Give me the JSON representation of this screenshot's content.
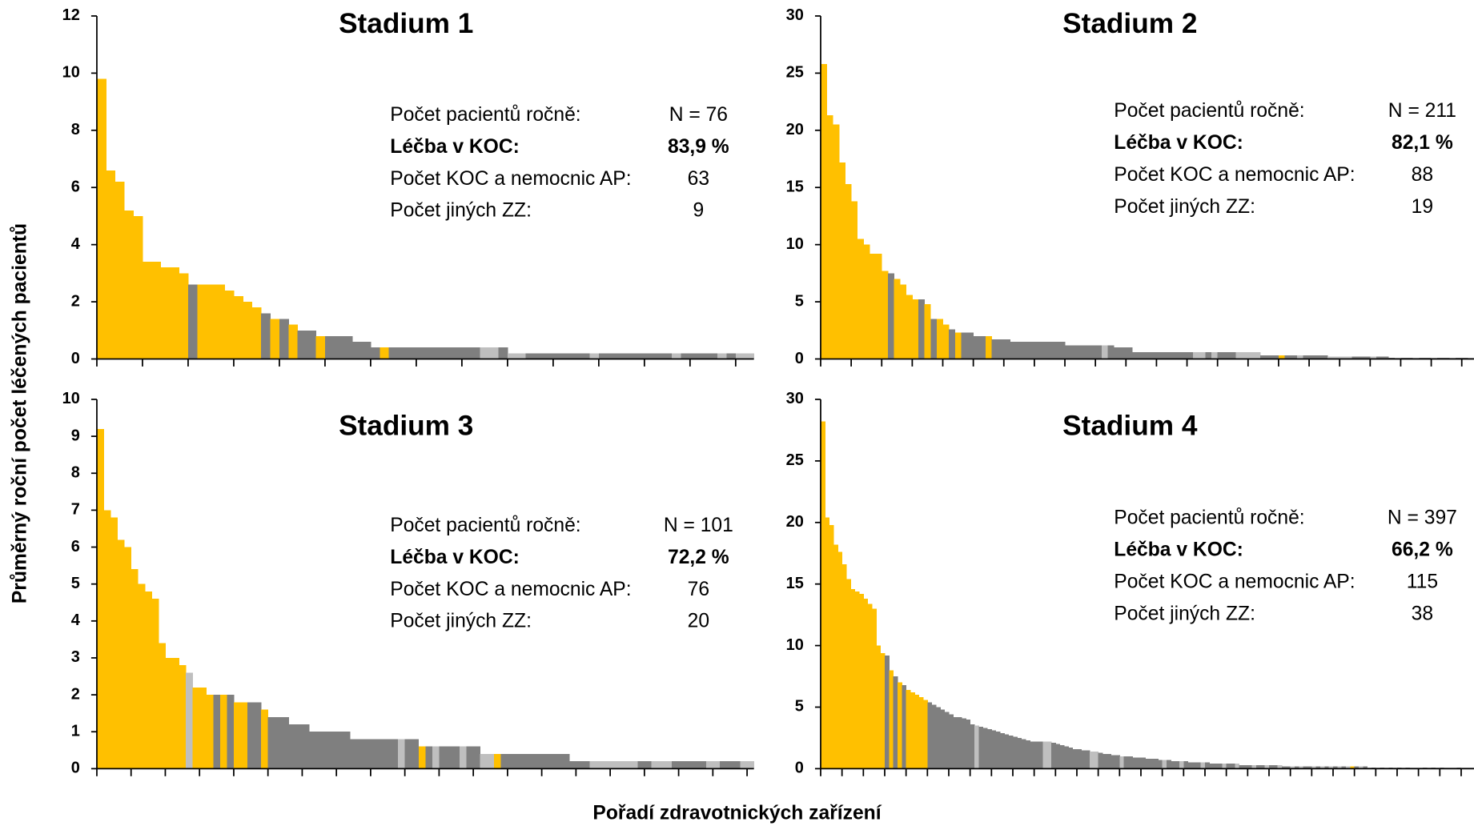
{
  "axis_titles": {
    "y": "Průměrný roční počet léčených pacientů",
    "x": "Pořadí zdravotnických zařízení"
  },
  "chart_data": [
    {
      "type": "bar",
      "title": "Stadium 1",
      "ylim": [
        0,
        12
      ],
      "yticks": [
        0,
        2,
        4,
        6,
        8,
        10,
        12
      ],
      "annotations": [
        {
          "label": "Počet pacientů ročně:",
          "value_label": "N = 76"
        },
        {
          "label": "Léčba v KOC:",
          "value_label": "83,9 %",
          "bold": true
        },
        {
          "label": "Počet KOC a nemocnic AP:",
          "value_label": "63"
        },
        {
          "label": "Počet jiných ZZ:",
          "value_label": "9"
        }
      ],
      "values": [
        9.8,
        6.6,
        6.2,
        5.2,
        5,
        3.4,
        3.4,
        3.2,
        3.2,
        3,
        2.6,
        2.6,
        2.6,
        2.6,
        2.4,
        2.2,
        2,
        1.8,
        1.6,
        1.4,
        1.4,
        1.2,
        1,
        1,
        0.8,
        0.8,
        0.8,
        0.8,
        0.6,
        0.6,
        0.4,
        0.4,
        0.4,
        0.4,
        0.4,
        0.4,
        0.4,
        0.4,
        0.4,
        0.4,
        0.4,
        0.4,
        0.4,
        0.4,
        0.4,
        0.2,
        0.2,
        0.2,
        0.2,
        0.2,
        0.2,
        0.2,
        0.2,
        0.2,
        0.2,
        0.2,
        0.2,
        0.2,
        0.2,
        0.2,
        0.2,
        0.2,
        0.2,
        0.2,
        0.2,
        0.2,
        0.2,
        0.2,
        0.2,
        0.2,
        0.2,
        0.2
      ],
      "colors": [
        "#ffc000",
        "#ffc000",
        "#ffc000",
        "#ffc000",
        "#ffc000",
        "#ffc000",
        "#ffc000",
        "#ffc000",
        "#ffc000",
        "#ffc000",
        "#7f7f7f",
        "#ffc000",
        "#ffc000",
        "#ffc000",
        "#ffc000",
        "#ffc000",
        "#ffc000",
        "#ffc000",
        "#7f7f7f",
        "#ffc000",
        "#7f7f7f",
        "#ffc000",
        "#7f7f7f",
        "#7f7f7f",
        "#ffc000",
        "#7f7f7f",
        "#7f7f7f",
        "#7f7f7f",
        "#7f7f7f",
        "#7f7f7f",
        "#7f7f7f",
        "#ffc000",
        "#7f7f7f",
        "#7f7f7f",
        "#7f7f7f",
        "#7f7f7f",
        "#7f7f7f",
        "#7f7f7f",
        "#7f7f7f",
        "#7f7f7f",
        "#7f7f7f",
        "#7f7f7f",
        "#bfbfbf",
        "#bfbfbf",
        "#7f7f7f",
        "#bfbfbf",
        "#bfbfbf",
        "#7f7f7f",
        "#7f7f7f",
        "#7f7f7f",
        "#7f7f7f",
        "#7f7f7f",
        "#7f7f7f",
        "#7f7f7f",
        "#bfbfbf",
        "#7f7f7f",
        "#7f7f7f",
        "#7f7f7f",
        "#7f7f7f",
        "#7f7f7f",
        "#7f7f7f",
        "#7f7f7f",
        "#7f7f7f",
        "#bfbfbf",
        "#7f7f7f",
        "#7f7f7f",
        "#7f7f7f",
        "#7f7f7f",
        "#bfbfbf",
        "#7f7f7f",
        "#bfbfbf",
        "#bfbfbf"
      ]
    },
    {
      "type": "bar",
      "title": "Stadium 2",
      "ylim": [
        0,
        30
      ],
      "yticks": [
        0,
        5,
        10,
        15,
        20,
        25,
        30
      ],
      "annotations": [
        {
          "label": "Počet pacientů ročně:",
          "value_label": "N = 211"
        },
        {
          "label": "Léčba v KOC:",
          "value_label": "82,1 %",
          "bold": true
        },
        {
          "label": "Počet KOC a nemocnic AP:",
          "value_label": "88"
        },
        {
          "label": "Počet jiných ZZ:",
          "value_label": "19"
        }
      ],
      "values": [
        25.8,
        21.3,
        20.5,
        17.2,
        15.3,
        13.8,
        10.5,
        10,
        9.2,
        9.2,
        7.7,
        7.5,
        7,
        6.5,
        5.6,
        5.2,
        5.2,
        4.8,
        3.5,
        3.5,
        3,
        2.6,
        2.3,
        2.3,
        2.3,
        2,
        2,
        2,
        1.7,
        1.7,
        1.7,
        1.5,
        1.5,
        1.5,
        1.5,
        1.5,
        1.5,
        1.5,
        1.5,
        1.5,
        1.2,
        1.2,
        1.2,
        1.2,
        1.2,
        1.2,
        1.2,
        1.2,
        1,
        1,
        1,
        0.6,
        0.6,
        0.6,
        0.6,
        0.6,
        0.6,
        0.6,
        0.6,
        0.6,
        0.6,
        0.6,
        0.6,
        0.6,
        0.6,
        0.6,
        0.6,
        0.6,
        0.6,
        0.6,
        0.6,
        0.6,
        0.3,
        0.3,
        0.3,
        0.3,
        0.3,
        0.3,
        0.3,
        0.3,
        0.3,
        0.3,
        0.3,
        0.2,
        0.2,
        0.2,
        0.2,
        0.2,
        0.2,
        0.2,
        0.2,
        0.2,
        0.2,
        0.1,
        0.1,
        0.1,
        0.1,
        0.1,
        0.1,
        0.1,
        0.1,
        0.1,
        0.1,
        0.1,
        0.1,
        0.1,
        0.1
      ],
      "colors": [
        "#ffc000",
        "#ffc000",
        "#ffc000",
        "#ffc000",
        "#ffc000",
        "#ffc000",
        "#ffc000",
        "#ffc000",
        "#ffc000",
        "#ffc000",
        "#ffc000",
        "#7f7f7f",
        "#ffc000",
        "#ffc000",
        "#ffc000",
        "#ffc000",
        "#7f7f7f",
        "#ffc000",
        "#7f7f7f",
        "#ffc000",
        "#ffc000",
        "#7f7f7f",
        "#ffc000",
        "#7f7f7f",
        "#7f7f7f",
        "#7f7f7f",
        "#7f7f7f",
        "#ffc000",
        "#7f7f7f",
        "#7f7f7f",
        "#7f7f7f",
        "#7f7f7f",
        "#7f7f7f",
        "#7f7f7f",
        "#7f7f7f",
        "#7f7f7f",
        "#7f7f7f",
        "#7f7f7f",
        "#7f7f7f",
        "#7f7f7f",
        "#7f7f7f",
        "#7f7f7f",
        "#7f7f7f",
        "#7f7f7f",
        "#7f7f7f",
        "#7f7f7f",
        "#bfbfbf",
        "#7f7f7f",
        "#7f7f7f",
        "#7f7f7f",
        "#7f7f7f",
        "#7f7f7f",
        "#7f7f7f",
        "#7f7f7f",
        "#7f7f7f",
        "#7f7f7f",
        "#7f7f7f",
        "#7f7f7f",
        "#7f7f7f",
        "#7f7f7f",
        "#7f7f7f",
        "#bfbfbf",
        "#bfbfbf",
        "#7f7f7f",
        "#bfbfbf",
        "#7f7f7f",
        "#7f7f7f",
        "#7f7f7f",
        "#bfbfbf",
        "#bfbfbf",
        "#bfbfbf",
        "#bfbfbf",
        "#7f7f7f",
        "#7f7f7f",
        "#7f7f7f",
        "#ffc000",
        "#7f7f7f",
        "#7f7f7f",
        "#bfbfbf",
        "#7f7f7f",
        "#7f7f7f",
        "#7f7f7f",
        "#7f7f7f",
        "#bfbfbf",
        "#bfbfbf",
        "#bfbfbf",
        "#bfbfbf",
        "#7f7f7f",
        "#7f7f7f",
        "#7f7f7f",
        "#bfbfbf",
        "#7f7f7f",
        "#7f7f7f",
        "#7f7f7f",
        "#bfbfbf",
        "#7f7f7f",
        "#7f7f7f",
        "#bfbfbf",
        "#7f7f7f",
        "#7f7f7f",
        "#bfbfbf",
        "#7f7f7f",
        "#7f7f7f",
        "#bfbfbf",
        "#7f7f7f",
        "#7f7f7f",
        "#bfbfbf"
      ]
    },
    {
      "type": "bar",
      "title": "Stadium 3",
      "ylim": [
        0,
        10
      ],
      "yticks": [
        0,
        1,
        2,
        3,
        4,
        5,
        6,
        7,
        8,
        9,
        10
      ],
      "annotations": [
        {
          "label": "Počet pacientů ročně:",
          "value_label": "N = 101"
        },
        {
          "label": "Léčba v KOC:",
          "value_label": "72,2 %",
          "bold": true
        },
        {
          "label": "Počet KOC a nemocnic AP:",
          "value_label": "76"
        },
        {
          "label": "Počet jiných ZZ:",
          "value_label": "20"
        }
      ],
      "values": [
        9.2,
        7,
        6.8,
        6.2,
        6,
        5.4,
        5,
        4.8,
        4.6,
        3.4,
        3,
        3,
        2.8,
        2.6,
        2.2,
        2.2,
        2,
        2,
        2,
        2,
        1.8,
        1.8,
        1.8,
        1.8,
        1.6,
        1.4,
        1.4,
        1.4,
        1.2,
        1.2,
        1.2,
        1,
        1,
        1,
        1,
        1,
        1,
        0.8,
        0.8,
        0.8,
        0.8,
        0.8,
        0.8,
        0.8,
        0.8,
        0.8,
        0.8,
        0.6,
        0.6,
        0.6,
        0.6,
        0.6,
        0.6,
        0.6,
        0.6,
        0.6,
        0.4,
        0.4,
        0.4,
        0.4,
        0.4,
        0.4,
        0.4,
        0.4,
        0.4,
        0.4,
        0.4,
        0.4,
        0.4,
        0.2,
        0.2,
        0.2,
        0.2,
        0.2,
        0.2,
        0.2,
        0.2,
        0.2,
        0.2,
        0.2,
        0.2,
        0.2,
        0.2,
        0.2,
        0.2,
        0.2,
        0.2,
        0.2,
        0.2,
        0.2,
        0.2,
        0.2,
        0.2,
        0.2,
        0.2,
        0.2
      ],
      "colors": [
        "#ffc000",
        "#ffc000",
        "#ffc000",
        "#ffc000",
        "#ffc000",
        "#ffc000",
        "#ffc000",
        "#ffc000",
        "#ffc000",
        "#ffc000",
        "#ffc000",
        "#ffc000",
        "#ffc000",
        "#bfbfbf",
        "#ffc000",
        "#ffc000",
        "#ffc000",
        "#7f7f7f",
        "#ffc000",
        "#7f7f7f",
        "#ffc000",
        "#ffc000",
        "#7f7f7f",
        "#7f7f7f",
        "#ffc000",
        "#7f7f7f",
        "#7f7f7f",
        "#7f7f7f",
        "#7f7f7f",
        "#7f7f7f",
        "#7f7f7f",
        "#7f7f7f",
        "#7f7f7f",
        "#7f7f7f",
        "#7f7f7f",
        "#7f7f7f",
        "#7f7f7f",
        "#7f7f7f",
        "#7f7f7f",
        "#7f7f7f",
        "#7f7f7f",
        "#7f7f7f",
        "#7f7f7f",
        "#7f7f7f",
        "#bfbfbf",
        "#7f7f7f",
        "#7f7f7f",
        "#ffc000",
        "#7f7f7f",
        "#bfbfbf",
        "#7f7f7f",
        "#7f7f7f",
        "#7f7f7f",
        "#bfbfbf",
        "#7f7f7f",
        "#7f7f7f",
        "#bfbfbf",
        "#bfbfbf",
        "#ffc000",
        "#7f7f7f",
        "#7f7f7f",
        "#7f7f7f",
        "#7f7f7f",
        "#7f7f7f",
        "#7f7f7f",
        "#7f7f7f",
        "#7f7f7f",
        "#7f7f7f",
        "#7f7f7f",
        "#7f7f7f",
        "#7f7f7f",
        "#7f7f7f",
        "#bfbfbf",
        "#bfbfbf",
        "#bfbfbf",
        "#bfbfbf",
        "#bfbfbf",
        "#bfbfbf",
        "#bfbfbf",
        "#7f7f7f",
        "#7f7f7f",
        "#bfbfbf",
        "#bfbfbf",
        "#bfbfbf",
        "#7f7f7f",
        "#7f7f7f",
        "#7f7f7f",
        "#7f7f7f",
        "#7f7f7f",
        "#bfbfbf",
        "#bfbfbf",
        "#7f7f7f",
        "#7f7f7f",
        "#7f7f7f",
        "#bfbfbf",
        "#bfbfbf"
      ]
    },
    {
      "type": "bar",
      "title": "Stadium 4",
      "ylim": [
        0,
        30
      ],
      "yticks": [
        0,
        5,
        10,
        15,
        20,
        25,
        30
      ],
      "annotations": [
        {
          "label": "Počet pacientů ročně:",
          "value_label": "N = 397"
        },
        {
          "label": "Léčba v KOC:",
          "value_label": "66,2 %",
          "bold": true
        },
        {
          "label": "Počet KOC a nemocnic AP:",
          "value_label": "115"
        },
        {
          "label": "Počet jiných ZZ:",
          "value_label": "38"
        }
      ],
      "values": [
        28.2,
        20.4,
        19.8,
        18.2,
        17.6,
        16.6,
        15.4,
        14.6,
        14.4,
        14.2,
        13.8,
        13.4,
        13,
        10,
        9.4,
        9.2,
        8,
        7.5,
        7,
        6.8,
        6.4,
        6.2,
        6,
        5.8,
        5.6,
        5.4,
        5.2,
        5,
        4.8,
        4.6,
        4.4,
        4.2,
        4.2,
        4.1,
        4,
        3.6,
        3.5,
        3.4,
        3.3,
        3.2,
        3.1,
        3,
        2.9,
        2.8,
        2.7,
        2.6,
        2.5,
        2.4,
        2.3,
        2.2,
        2.2,
        2.2,
        2.2,
        2.2,
        2.1,
        2,
        1.9,
        1.8,
        1.7,
        1.6,
        1.6,
        1.5,
        1.5,
        1.4,
        1.4,
        1.3,
        1.2,
        1.2,
        1.1,
        1.1,
        1,
        1,
        1,
        0.9,
        0.9,
        0.9,
        0.8,
        0.8,
        0.8,
        0.7,
        0.7,
        0.7,
        0.6,
        0.6,
        0.6,
        0.6,
        0.5,
        0.5,
        0.5,
        0.5,
        0.5,
        0.4,
        0.4,
        0.4,
        0.4,
        0.4,
        0.4,
        0.4,
        0.3,
        0.3,
        0.3,
        0.3,
        0.3,
        0.3,
        0.3,
        0.3,
        0.3,
        0.3,
        0.2,
        0.2,
        0.2,
        0.2,
        0.2,
        0.2,
        0.2,
        0.2,
        0.2,
        0.2,
        0.2,
        0.2,
        0.2,
        0.2,
        0.2,
        0.2,
        0.2,
        0.2,
        0.2,
        0.2,
        0.1,
        0.1,
        0.1,
        0.1,
        0.1,
        0.1,
        0.1,
        0.1,
        0.1,
        0.1,
        0.1,
        0.1,
        0.1,
        0.1,
        0.1,
        0.1,
        0.1,
        0.1,
        0.1,
        0.1,
        0.1,
        0.1,
        0.1,
        0.1,
        0.1
      ],
      "colors": [
        "#ffc000",
        "#ffc000",
        "#ffc000",
        "#ffc000",
        "#ffc000",
        "#ffc000",
        "#ffc000",
        "#ffc000",
        "#ffc000",
        "#ffc000",
        "#ffc000",
        "#ffc000",
        "#ffc000",
        "#ffc000",
        "#ffc000",
        "#7f7f7f",
        "#ffc000",
        "#7f7f7f",
        "#ffc000",
        "#7f7f7f",
        "#ffc000",
        "#ffc000",
        "#ffc000",
        "#ffc000",
        "#ffc000",
        "#7f7f7f",
        "#7f7f7f",
        "#7f7f7f",
        "#7f7f7f",
        "#7f7f7f",
        "#7f7f7f",
        "#7f7f7f",
        "#7f7f7f",
        "#7f7f7f",
        "#7f7f7f",
        "#7f7f7f",
        "#bfbfbf",
        "#7f7f7f",
        "#7f7f7f",
        "#7f7f7f",
        "#7f7f7f",
        "#7f7f7f",
        "#7f7f7f",
        "#7f7f7f",
        "#7f7f7f",
        "#7f7f7f",
        "#7f7f7f",
        "#7f7f7f",
        "#7f7f7f",
        "#7f7f7f",
        "#7f7f7f",
        "#7f7f7f",
        "#bfbfbf",
        "#bfbfbf",
        "#7f7f7f",
        "#7f7f7f",
        "#7f7f7f",
        "#7f7f7f",
        "#7f7f7f",
        "#7f7f7f",
        "#7f7f7f",
        "#7f7f7f",
        "#7f7f7f",
        "#bfbfbf",
        "#bfbfbf",
        "#7f7f7f",
        "#7f7f7f",
        "#7f7f7f",
        "#7f7f7f",
        "#7f7f7f",
        "#bfbfbf",
        "#7f7f7f",
        "#7f7f7f",
        "#7f7f7f",
        "#7f7f7f",
        "#7f7f7f",
        "#7f7f7f",
        "#7f7f7f",
        "#7f7f7f",
        "#7f7f7f",
        "#bfbfbf",
        "#7f7f7f",
        "#7f7f7f",
        "#7f7f7f",
        "#bfbfbf",
        "#7f7f7f",
        "#7f7f7f",
        "#7f7f7f",
        "#7f7f7f",
        "#bfbfbf",
        "#7f7f7f",
        "#7f7f7f",
        "#7f7f7f",
        "#7f7f7f",
        "#bfbfbf",
        "#7f7f7f",
        "#7f7f7f",
        "#bfbfbf",
        "#7f7f7f",
        "#7f7f7f",
        "#7f7f7f",
        "#bfbfbf",
        "#7f7f7f",
        "#7f7f7f",
        "#bfbfbf",
        "#7f7f7f",
        "#7f7f7f",
        "#bfbfbf",
        "#7f7f7f",
        "#7f7f7f",
        "#bfbfbf",
        "#7f7f7f",
        "#bfbfbf",
        "#7f7f7f",
        "#7f7f7f",
        "#bfbfbf",
        "#7f7f7f",
        "#bfbfbf",
        "#7f7f7f",
        "#bfbfbf",
        "#7f7f7f",
        "#bfbfbf",
        "#7f7f7f",
        "#bfbfbf",
        "#ffc000",
        "#7f7f7f",
        "#bfbfbf",
        "#7f7f7f",
        "#bfbfbf",
        "#7f7f7f",
        "#bfbfbf",
        "#7f7f7f",
        "#bfbfbf",
        "#7f7f7f",
        "#bfbfbf",
        "#7f7f7f",
        "#bfbfbf",
        "#7f7f7f",
        "#bfbfbf",
        "#bfbfbf",
        "#bfbfbf",
        "#7f7f7f",
        "#bfbfbf",
        "#7f7f7f",
        "#bfbfbf",
        "#7f7f7f",
        "#bfbfbf",
        "#bfbfbf",
        "#bfbfbf",
        "#7f7f7f",
        "#bfbfbf",
        "#bfbfbf",
        "#bfbfbf"
      ]
    }
  ]
}
